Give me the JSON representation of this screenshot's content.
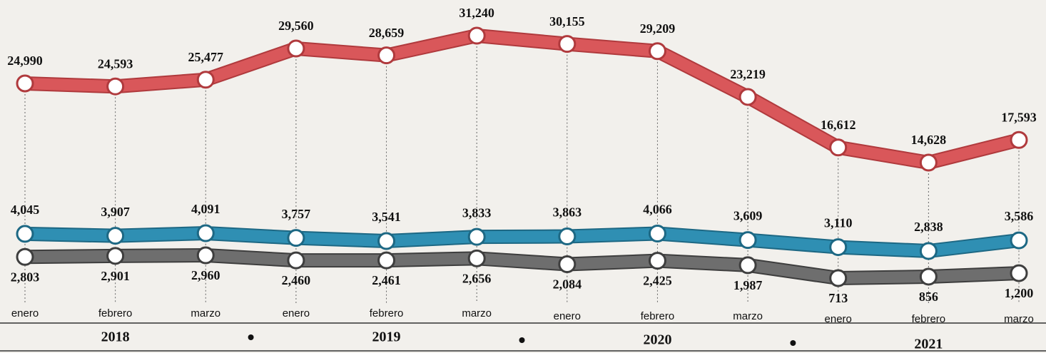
{
  "chart_data": {
    "type": "line",
    "categories": [
      "enero",
      "febrero",
      "marzo",
      "enero",
      "febrero",
      "marzo",
      "enero",
      "febrero",
      "marzo",
      "enero",
      "febrero",
      "marzo"
    ],
    "years": [
      "2018",
      "2019",
      "2020",
      "2021"
    ],
    "series": [
      {
        "color": "#d9575a",
        "values": [
          24990,
          24593,
          25477,
          29560,
          28659,
          31240,
          30155,
          29209,
          23219,
          16612,
          14628,
          17593
        ],
        "value_labels": [
          "24,990",
          "24,593",
          "25,477",
          "29,560",
          "28,659",
          "31,240",
          "30,155",
          "29,209",
          "23,219",
          "16,612",
          "14,628",
          "17,593"
        ]
      },
      {
        "color": "#2f8fb3",
        "values": [
          4045,
          3907,
          4091,
          3757,
          3541,
          3833,
          3863,
          4066,
          3609,
          3110,
          2838,
          3586
        ],
        "value_labels": [
          "4,045",
          "3,907",
          "4,091",
          "3,757",
          "3,541",
          "3,833",
          "3,863",
          "4,066",
          "3,609",
          "3,110",
          "2,838",
          "3,586"
        ]
      },
      {
        "color": "#6e6e6e",
        "values": [
          2803,
          2901,
          2960,
          2460,
          2461,
          2656,
          2084,
          2425,
          1987,
          713,
          856,
          1200
        ],
        "value_labels": [
          "2,803",
          "2,901",
          "2,960",
          "2,460",
          "2,461",
          "2,656",
          "2,084",
          "2,425",
          "1,987",
          "713",
          "856",
          "1,200"
        ]
      }
    ]
  }
}
